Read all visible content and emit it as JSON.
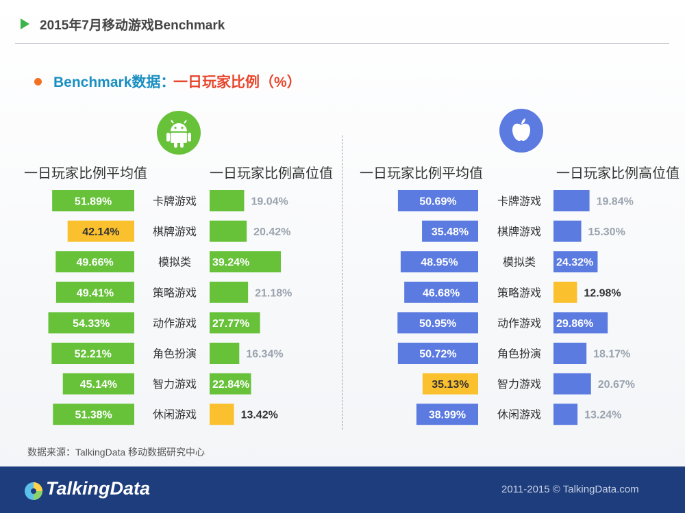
{
  "header": {
    "title": "2015年7月移动游戏Benchmark"
  },
  "subtitle": {
    "part1": "Benchmark数据：",
    "part2": "一日玩家比例（%）"
  },
  "columns": {
    "android_avg": "一日玩家比例平均值",
    "android_high": "一日玩家比例高位值",
    "ios_avg": "一日玩家比例平均值",
    "ios_high": "一日玩家比例高位值"
  },
  "colors": {
    "green": "#67c23a",
    "yellow": "#fbc02d",
    "blue": "#5b7be0",
    "gray_label": "#9aa3ae",
    "dark_label": "#333333",
    "white": "#ffffff"
  },
  "chart_data": {
    "type": "bar",
    "categories": [
      "卡牌游戏",
      "棋牌游戏",
      "模拟类",
      "策略游戏",
      "动作游戏",
      "角色扮演",
      "智力游戏",
      "休闲游戏"
    ],
    "series": [
      {
        "platform": "Android",
        "metric": "一日玩家比例平均值",
        "values": [
          51.89,
          42.14,
          49.66,
          49.41,
          54.33,
          52.21,
          45.14,
          51.38
        ],
        "labels": [
          "51.89%",
          "42.14%",
          "49.66%",
          "49.41%",
          "54.33%",
          "52.21%",
          "45.14%",
          "51.38%"
        ],
        "highlight": [
          false,
          true,
          false,
          false,
          false,
          false,
          false,
          false
        ]
      },
      {
        "platform": "Android",
        "metric": "一日玩家比例高位值",
        "values": [
          19.04,
          20.42,
          39.24,
          21.18,
          27.77,
          16.34,
          22.84,
          13.42
        ],
        "labels": [
          "19.04%",
          "20.42%",
          "39.24%",
          "21.18%",
          "27.77%",
          "16.34%",
          "22.84%",
          "13.42%"
        ],
        "highlight": [
          false,
          false,
          false,
          false,
          false,
          false,
          false,
          true
        ]
      },
      {
        "platform": "iOS",
        "metric": "一日玩家比例平均值",
        "values": [
          50.69,
          35.48,
          48.95,
          46.68,
          50.95,
          50.72,
          35.13,
          38.99
        ],
        "labels": [
          "50.69%",
          "35.48%",
          "48.95%",
          "46.68%",
          "50.95%",
          "50.72%",
          "35.13%",
          "38.99%"
        ],
        "highlight": [
          false,
          false,
          false,
          false,
          false,
          false,
          true,
          false
        ]
      },
      {
        "platform": "iOS",
        "metric": "一日玩家比例高位值",
        "values": [
          19.84,
          15.3,
          24.32,
          12.98,
          29.86,
          18.17,
          20.67,
          13.24
        ],
        "labels": [
          "19.84%",
          "15.30%",
          "24.32%",
          "12.98%",
          "29.86%",
          "18.17%",
          "20.67%",
          "13.24%"
        ],
        "highlight": [
          false,
          false,
          false,
          true,
          false,
          false,
          false,
          false
        ]
      }
    ]
  },
  "source": "数据来源：TalkingData 移动数据研究中心",
  "footer": {
    "brand": "TalkingData",
    "copyright": "2011-2015 © TalkingData.com"
  }
}
